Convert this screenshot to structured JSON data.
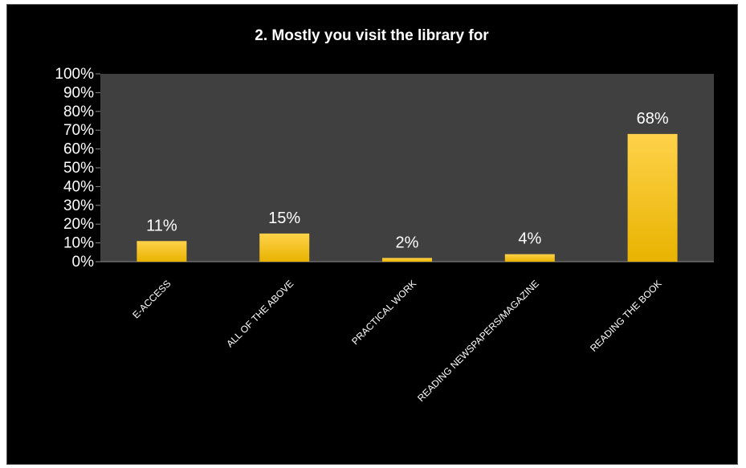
{
  "chart_data": {
    "type": "bar",
    "title": "2. Mostly you visit the library for",
    "categories": [
      "E-ACCESS",
      "ALL OF THE ABOVE",
      "PRACTICAL WORK",
      "READING NEWSPAPERS/MAGAZINE",
      "READING THE BOOK"
    ],
    "values": [
      11,
      15,
      2,
      4,
      68
    ],
    "data_labels": [
      "11%",
      "15%",
      "2%",
      "4%",
      "68%"
    ],
    "yticks": [
      "0%",
      "10%",
      "20%",
      "30%",
      "40%",
      "50%",
      "60%",
      "70%",
      "80%",
      "90%",
      "100%"
    ],
    "ylim": [
      0,
      100
    ],
    "xlabel": "",
    "ylabel": "",
    "grid": false,
    "legend": "none"
  },
  "colors": {
    "background": "#000000",
    "plot_area": "#404040",
    "bar_top": "#ffd24a",
    "bar_bottom": "#e8b300",
    "text": "#ffffff"
  }
}
